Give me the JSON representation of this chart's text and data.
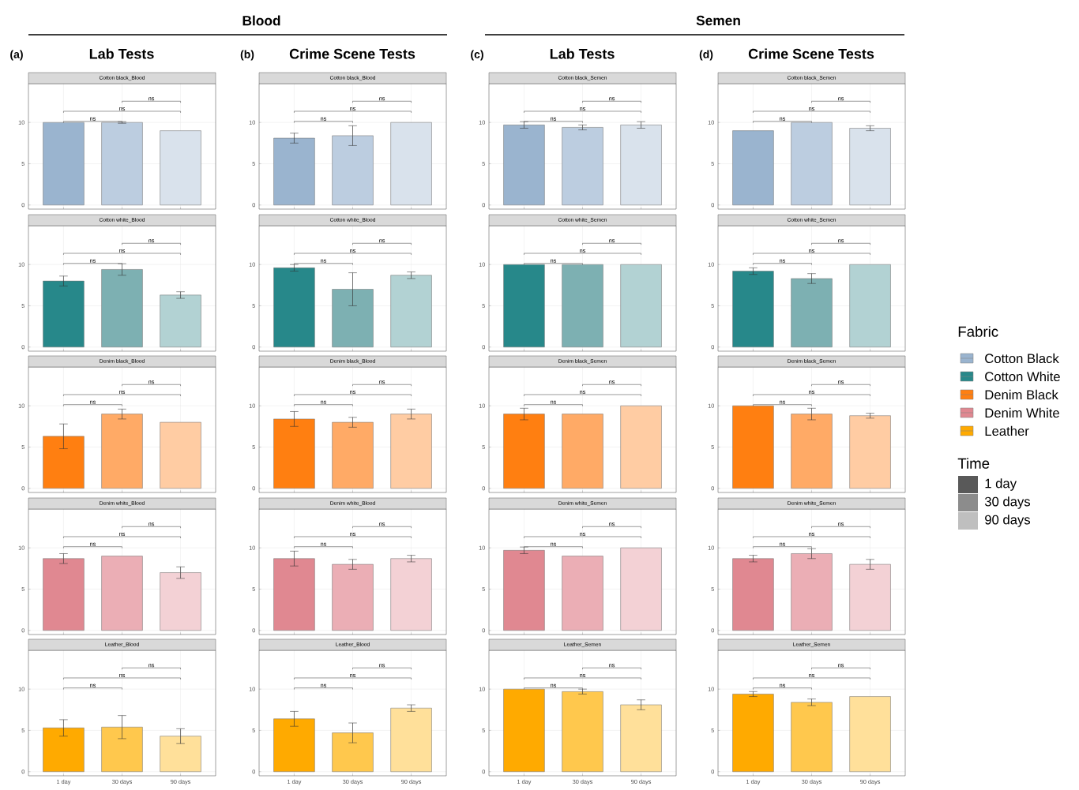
{
  "chart_data": [
    {
      "type": "other",
      "title": "Blood"
    },
    {
      "type": "other",
      "title": "Semen"
    },
    {
      "type": "other",
      "title": "Lab Tests",
      "annotations": [
        "(a)"
      ]
    },
    {
      "type": "other",
      "title": "Crime Scene Tests",
      "annotations": [
        "(b)"
      ]
    },
    {
      "type": "other",
      "title": "Lab Tests",
      "annotations": [
        "(c)"
      ]
    },
    {
      "type": "other",
      "title": "Crime Scene Tests",
      "annotations": [
        "(d)"
      ]
    },
    {
      "type": "bar",
      "title": "Cotton black_Blood",
      "categories": [
        null,
        null,
        null
      ],
      "values": [
        10,
        10,
        9
      ],
      "errors": [
        null,
        0.1,
        null
      ],
      "colors": [
        "#9ab4cf",
        "#bccde0",
        "#d9e2ec"
      ],
      "ylim": [
        -0.5,
        14.7
      ],
      "yticks": [
        0,
        5,
        10
      ],
      "grid": true,
      "annotations": [
        "ns",
        "ns",
        "ns"
      ]
    },
    {
      "type": "bar",
      "title": "Cotton black_Blood",
      "categories": [
        null,
        null,
        null
      ],
      "values": [
        8.1,
        8.4,
        10
      ],
      "errors": [
        0.6,
        1.2,
        null
      ],
      "colors": [
        "#9ab4cf",
        "#bccde0",
        "#d9e2ec"
      ],
      "ylim": [
        -0.5,
        14.7
      ],
      "yticks": [
        0,
        5,
        10
      ],
      "grid": true,
      "annotations": [
        "ns",
        "ns",
        "ns"
      ]
    },
    {
      "type": "bar",
      "title": "Cotton black_Semen",
      "categories": [
        null,
        null,
        null
      ],
      "values": [
        9.7,
        9.4,
        9.7
      ],
      "errors": [
        0.4,
        0.3,
        0.4
      ],
      "colors": [
        "#9ab4cf",
        "#bccde0",
        "#d9e2ec"
      ],
      "ylim": [
        -0.5,
        14.7
      ],
      "yticks": [
        0,
        5,
        10
      ],
      "grid": true,
      "annotations": [
        "ns",
        "ns",
        "ns"
      ]
    },
    {
      "type": "bar",
      "title": "Cotton black_Semen",
      "categories": [
        null,
        null,
        null
      ],
      "values": [
        9,
        10,
        9.3
      ],
      "errors": [
        null,
        null,
        0.3
      ],
      "colors": [
        "#9ab4cf",
        "#bccde0",
        "#d9e2ec"
      ],
      "ylim": [
        -0.5,
        14.7
      ],
      "yticks": [
        0,
        5,
        10
      ],
      "grid": true,
      "annotations": [
        "ns",
        "ns",
        "ns"
      ]
    },
    {
      "type": "bar",
      "title": "Cotton white_Blood",
      "categories": [
        null,
        null,
        null
      ],
      "values": [
        8,
        9.4,
        6.3
      ],
      "errors": [
        0.6,
        0.7,
        0.4
      ],
      "colors": [
        "#27888a",
        "#7db0b2",
        "#b2d2d3"
      ],
      "ylim": [
        -0.5,
        14.7
      ],
      "yticks": [
        0,
        5,
        10
      ],
      "grid": true,
      "annotations": [
        "ns",
        "ns",
        "ns"
      ]
    },
    {
      "type": "bar",
      "title": "Cotton white_Blood",
      "categories": [
        null,
        null,
        null
      ],
      "values": [
        9.6,
        7,
        8.7
      ],
      "errors": [
        0.4,
        2,
        0.4
      ],
      "colors": [
        "#27888a",
        "#7db0b2",
        "#b2d2d3"
      ],
      "ylim": [
        -0.5,
        14.7
      ],
      "yticks": [
        0,
        5,
        10
      ],
      "grid": true,
      "annotations": [
        "ns",
        "ns",
        "ns"
      ]
    },
    {
      "type": "bar",
      "title": "Cotton white_Semen",
      "categories": [
        null,
        null,
        null
      ],
      "values": [
        10,
        10,
        10
      ],
      "colors": [
        "#27888a",
        "#7db0b2",
        "#b2d2d3"
      ],
      "ylim": [
        -0.5,
        14.7
      ],
      "yticks": [
        0,
        5,
        10
      ],
      "grid": true,
      "annotations": [
        "ns",
        "ns",
        "ns"
      ]
    },
    {
      "type": "bar",
      "title": "Cotton white_Semen",
      "categories": [
        null,
        null,
        null
      ],
      "values": [
        9.2,
        8.3,
        10
      ],
      "errors": [
        0.4,
        0.6,
        null
      ],
      "colors": [
        "#27888a",
        "#7db0b2",
        "#b2d2d3"
      ],
      "ylim": [
        -0.5,
        14.7
      ],
      "yticks": [
        0,
        5,
        10
      ],
      "grid": true,
      "annotations": [
        "ns",
        "ns",
        "ns"
      ]
    },
    {
      "type": "bar",
      "title": "Denim black_Blood",
      "categories": [
        null,
        null,
        null
      ],
      "values": [
        6.3,
        9,
        8
      ],
      "errors": [
        1.5,
        0.6,
        null
      ],
      "colors": [
        "#ff7f11",
        "#ffaa66",
        "#ffcca3"
      ],
      "ylim": [
        -0.5,
        14.7
      ],
      "yticks": [
        0,
        5,
        10
      ],
      "grid": true,
      "annotations": [
        "ns",
        "ns",
        "ns"
      ]
    },
    {
      "type": "bar",
      "title": "Denim black_Blood",
      "categories": [
        null,
        null,
        null
      ],
      "values": [
        8.4,
        8,
        9
      ],
      "errors": [
        0.9,
        0.6,
        0.6
      ],
      "colors": [
        "#ff7f11",
        "#ffaa66",
        "#ffcca3"
      ],
      "ylim": [
        -0.5,
        14.7
      ],
      "yticks": [
        0,
        5,
        10
      ],
      "grid": true,
      "annotations": [
        "ns",
        "ns",
        "ns"
      ]
    },
    {
      "type": "bar",
      "title": "Denim black_Semen",
      "categories": [
        null,
        null,
        null
      ],
      "values": [
        9,
        9,
        10
      ],
      "errors": [
        0.7,
        null,
        null
      ],
      "colors": [
        "#ff7f11",
        "#ffaa66",
        "#ffcca3"
      ],
      "ylim": [
        -0.5,
        14.7
      ],
      "yticks": [
        0,
        5,
        10
      ],
      "grid": true,
      "annotations": [
        "ns",
        "ns",
        "ns"
      ]
    },
    {
      "type": "bar",
      "title": "Denim black_Semen",
      "categories": [
        null,
        null,
        null
      ],
      "values": [
        10,
        9,
        8.8
      ],
      "errors": [
        null,
        0.7,
        0.3
      ],
      "colors": [
        "#ff7f11",
        "#ffaa66",
        "#ffcca3"
      ],
      "ylim": [
        -0.5,
        14.7
      ],
      "yticks": [
        0,
        5,
        10
      ],
      "grid": true,
      "annotations": [
        "ns",
        "ns",
        "ns"
      ]
    },
    {
      "type": "bar",
      "title": "Denim white_Blood",
      "categories": [
        null,
        null,
        null
      ],
      "values": [
        8.7,
        9,
        7
      ],
      "errors": [
        0.6,
        null,
        0.7
      ],
      "colors": [
        "#e08891",
        "#ebaeb5",
        "#f3d1d5"
      ],
      "ylim": [
        -0.5,
        14.7
      ],
      "yticks": [
        0,
        5,
        10
      ],
      "grid": true,
      "annotations": [
        "ns",
        "ns",
        "ns"
      ]
    },
    {
      "type": "bar",
      "title": "Denim white_Blood",
      "categories": [
        null,
        null,
        null
      ],
      "values": [
        8.7,
        8,
        8.7
      ],
      "errors": [
        0.9,
        0.6,
        0.4
      ],
      "colors": [
        "#e08891",
        "#ebaeb5",
        "#f3d1d5"
      ],
      "ylim": [
        -0.5,
        14.7
      ],
      "yticks": [
        0,
        5,
        10
      ],
      "grid": true,
      "annotations": [
        "ns",
        "ns",
        "ns"
      ]
    },
    {
      "type": "bar",
      "title": "Denim white_Semen",
      "categories": [
        null,
        null,
        null
      ],
      "values": [
        9.7,
        9,
        10
      ],
      "errors": [
        0.4,
        null,
        null
      ],
      "colors": [
        "#e08891",
        "#ebaeb5",
        "#f3d1d5"
      ],
      "ylim": [
        -0.5,
        14.7
      ],
      "yticks": [
        0,
        5,
        10
      ],
      "grid": true,
      "annotations": [
        "ns",
        "ns",
        "ns"
      ]
    },
    {
      "type": "bar",
      "title": "Denim white_Semen",
      "categories": [
        null,
        null,
        null
      ],
      "values": [
        8.7,
        9.3,
        8
      ],
      "errors": [
        0.4,
        0.6,
        0.6
      ],
      "colors": [
        "#e08891",
        "#ebaeb5",
        "#f3d1d5"
      ],
      "ylim": [
        -0.5,
        14.7
      ],
      "yticks": [
        0,
        5,
        10
      ],
      "grid": true,
      "annotations": [
        "ns",
        "ns",
        "ns"
      ]
    },
    {
      "type": "bar",
      "title": "Leather_Blood",
      "categories": [
        "1 day",
        "30 days",
        "90 days"
      ],
      "values": [
        5.3,
        5.4,
        4.3
      ],
      "errors": [
        1,
        1.4,
        0.9
      ],
      "colors": [
        "#ffaa00",
        "#ffc84d",
        "#ffe09a"
      ],
      "ylim": [
        -0.5,
        14.7
      ],
      "yticks": [
        0,
        5,
        10
      ],
      "grid": true,
      "annotations": [
        "ns",
        "ns",
        "ns"
      ]
    },
    {
      "type": "bar",
      "title": "Leather_Blood",
      "categories": [
        "1 day",
        "30 days",
        "90 days"
      ],
      "values": [
        6.4,
        4.7,
        7.7
      ],
      "errors": [
        0.9,
        1.2,
        0.4
      ],
      "colors": [
        "#ffaa00",
        "#ffc84d",
        "#ffe09a"
      ],
      "ylim": [
        -0.5,
        14.7
      ],
      "yticks": [
        0,
        5,
        10
      ],
      "grid": true,
      "annotations": [
        "ns",
        "ns",
        "ns"
      ]
    },
    {
      "type": "bar",
      "title": "Leather_Semen",
      "categories": [
        "1 day",
        "30 days",
        "90 days"
      ],
      "values": [
        10,
        9.7,
        8.1
      ],
      "errors": [
        null,
        0.3,
        0.6
      ],
      "colors": [
        "#ffaa00",
        "#ffc84d",
        "#ffe09a"
      ],
      "ylim": [
        -0.5,
        14.7
      ],
      "yticks": [
        0,
        5,
        10
      ],
      "grid": true,
      "annotations": [
        "ns",
        "ns",
        "ns"
      ]
    },
    {
      "type": "bar",
      "title": "Leather_Semen",
      "categories": [
        "1 day",
        "30 days",
        "90 days"
      ],
      "values": [
        9.4,
        8.4,
        9.1
      ],
      "errors": [
        0.3,
        0.4,
        null
      ],
      "colors": [
        "#ffaa00",
        "#ffc84d",
        "#ffe09a"
      ],
      "ylim": [
        -0.5,
        14.7
      ],
      "yticks": [
        0,
        5,
        10
      ],
      "grid": true,
      "annotations": [
        "ns",
        "ns",
        "ns"
      ]
    },
    {
      "type": "other",
      "legend_title": "Fabric",
      "categories": [
        "Cotton Black",
        "Cotton White",
        "Denim Black",
        "Denim White",
        "Leather"
      ],
      "colors": [
        "#9ab4cf",
        "#27888a",
        "#ff7f11",
        "#e08891",
        "#ffaa00"
      ]
    },
    {
      "type": "other",
      "legend_title": "Time",
      "categories": [
        "1 day",
        "30 days",
        "90 days"
      ],
      "colors": [
        "#595959",
        "#8c8c8c",
        "#bfbfbf"
      ]
    }
  ]
}
